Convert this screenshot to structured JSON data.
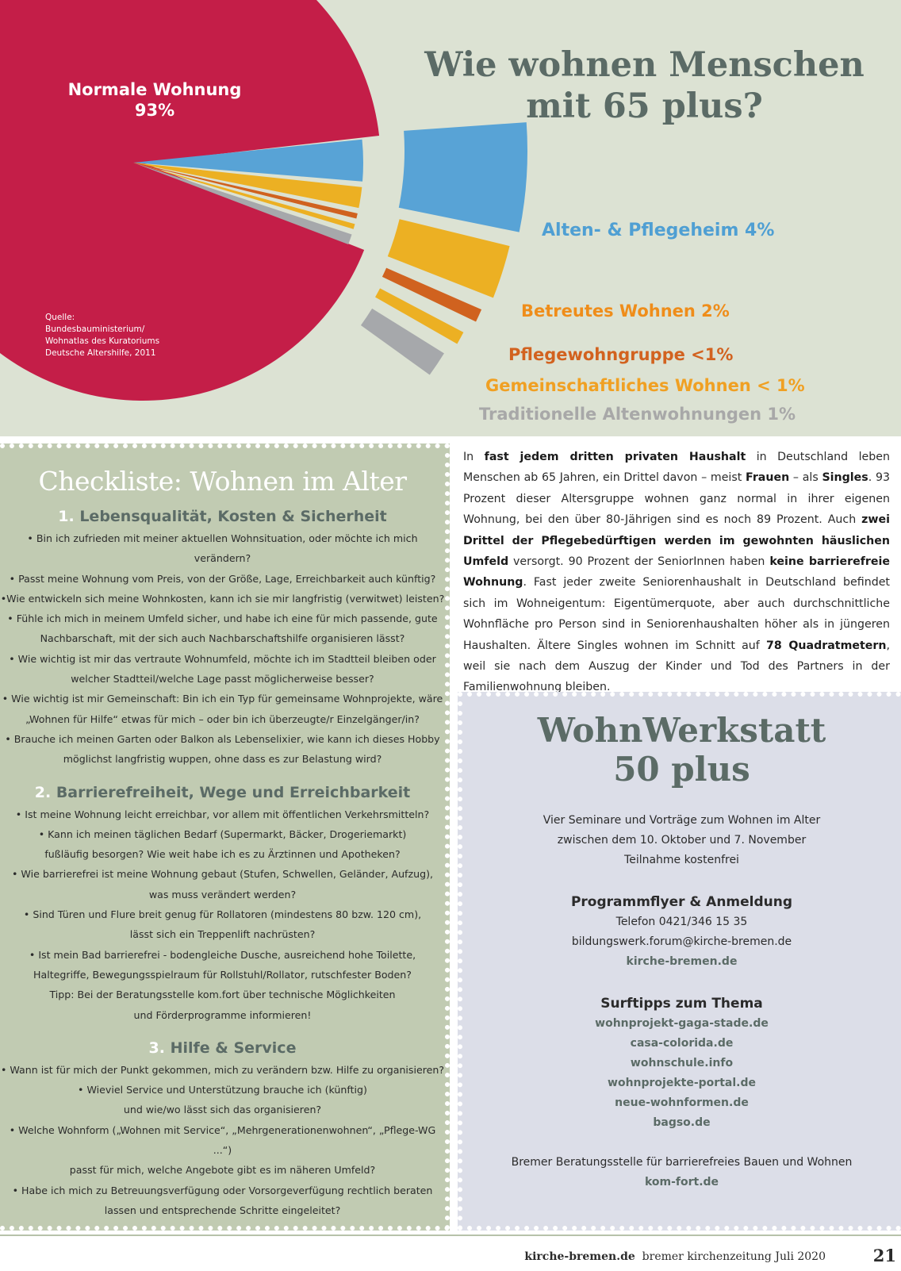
{
  "header": {
    "title_line1": "Wie wohnen Menschen",
    "title_line2": "mit 65 plus?"
  },
  "chart_data": {
    "type": "pie",
    "slices": [
      {
        "label": "Normale Wohnung",
        "value_text": "93%",
        "value": 93,
        "color": "#c41e48"
      },
      {
        "label": "Alten- & Pflegeheim 4%",
        "value": 4,
        "color": "#58a3d6"
      },
      {
        "label": "Betreutes Wohnen 2%",
        "value": 2,
        "color": "#ecb023"
      },
      {
        "label": "Pflegewohngruppe <1%",
        "value": 0.5,
        "color": "#d0621f"
      },
      {
        "label": "Gemeinschaftliches Wohnen < 1%",
        "value": 0.5,
        "color": "#ecb023"
      },
      {
        "label": "Traditionelle Altenwohnungen 1%",
        "value": 1,
        "color": "#a6a8ab"
      }
    ],
    "source": "Quelle:\nBundesbauministerium/\nWohnatlas des Kuratoriums\nDeutsche Altershilfe, 2011"
  },
  "checklist": {
    "title": "Checkliste: Wohnen im Alter",
    "sections": [
      {
        "num": "1.",
        "title": "Lebensqualität, Kosten & Sicherheit",
        "items": [
          "• Bin ich zufrieden mit meiner aktuellen Wohnsituation, oder möchte ich mich verändern?",
          "• Passt meine Wohnung vom Preis, von der Größe, Lage, Erreichbarkeit auch künftig?",
          "•Wie entwickeln sich meine Wohnkosten, kann ich sie mir langfristig (verwitwet) leisten?",
          "• Fühle ich mich in meinem Umfeld sicher, und habe ich eine für mich passende, gute\nNachbarschaft, mit der sich auch Nachbarschaftshilfe organisieren lässt?",
          "• Wie wichtig ist mir das vertraute Wohnumfeld, möchte ich im Stadtteil bleiben oder\nwelcher Stadtteil/welche Lage passt möglicherweise besser?",
          "• Wie wichtig ist mir Gemeinschaft: Bin ich ein Typ für gemeinsame Wohnprojekte, wäre\n„Wohnen für Hilfe“ etwas für mich – oder bin ich überzeugte/r Einzelgänger/in?",
          "• Brauche ich meinen Garten oder Balkon als Lebenselixier, wie kann ich dieses Hobby\nmöglichst langfristig wuppen, ohne dass es zur Belastung wird?"
        ]
      },
      {
        "num": "2.",
        "title": "Barrierefreiheit, Wege und Erreichbarkeit",
        "items": [
          "• Ist meine Wohnung leicht erreichbar, vor allem mit öffentlichen Verkehrsmitteln?",
          "• Kann ich meinen täglichen Bedarf (Supermarkt, Bäcker, Drogeriemarkt)\nfußläufig besorgen? Wie weit habe ich es zu Ärztinnen und Apotheken?",
          "• Wie barrierefrei ist meine Wohnung gebaut (Stufen, Schwellen, Geländer, Aufzug),\nwas muss verändert werden?",
          "• Sind Türen und Flure breit genug für Rollatoren (mindestens 80 bzw. 120 cm),\nlässt sich ein Treppenlift nachrüsten?",
          "• Ist mein Bad barrierefrei - bodengleiche Dusche, ausreichend hohe Toilette,\nHaltegriffe, Bewegungsspielraum für Rollstuhl/Rollator, rutschfester Boden?\nTipp: Bei der Beratungsstelle kom.fort über technische Möglichkeiten\nund Förderprogramme informieren!"
        ]
      },
      {
        "num": "3.",
        "title": "Hilfe & Service",
        "items": [
          "• Wann ist für mich der Punkt gekommen, mich zu verändern bzw. Hilfe zu organisieren?",
          "• Wieviel Service und Unterstützung brauche ich (künftig)\nund wie/wo lässt sich das organisieren?",
          "• Welche Wohnform („Wohnen mit Service“, „Mehrgenerationenwohnen“, „Pflege-WG ...“)\npasst für mich, welche Angebote gibt es im näheren Umfeld?",
          "• Habe ich mich zu Betreuungsverfügung oder Vorsorgeverfügung rechtlich beraten\nlassen und entsprechende Schritte eingeleitet?"
        ]
      }
    ]
  },
  "article": {
    "runs": [
      {
        "t": "In "
      },
      {
        "t": "fast jedem dritten privaten Haushalt",
        "b": true
      },
      {
        "t": " in Deutschland leben Menschen ab 65 Jahren, ein Drittel davon – meist "
      },
      {
        "t": "Frauen",
        "b": true
      },
      {
        "t": " – als "
      },
      {
        "t": "Singles",
        "b": true
      },
      {
        "t": ". 93 Prozent dieser Altersgruppe wohnen ganz normal in ihrer eigenen Wohnung, bei den über 80-Jährigen sind es noch 89 Prozent. Auch "
      },
      {
        "t": "zwei Drittel der Pflegebedürftigen werden im gewohnten häuslichen Umfeld",
        "b": true
      },
      {
        "t": " versorgt. 90 Prozent der SeniorInnen haben "
      },
      {
        "t": "keine barrierefreie Wohnung",
        "b": true
      },
      {
        "t": ". Fast jeder zweite Seniorenhaushalt in Deutschland befindet sich im Wohneigentum: Eigentümerquote, aber auch durchschnittliche Wohnfläche pro Person sind in Seniorenhaushalten höher als in jüngeren Haushalten. Ältere Singles wohnen im Schnitt auf "
      },
      {
        "t": "78 Quadratmetern",
        "b": true
      },
      {
        "t": ", weil sie nach dem Auszug der Kinder und Tod des Partners in der Familienwohnung bleiben."
      }
    ]
  },
  "werkstatt": {
    "title_line1": "WohnWerkstatt",
    "title_line2": "50 plus",
    "intro": [
      "Vier Seminare und Vorträge zum Wohnen im Alter",
      "zwischen dem 10. Oktober und 7. November",
      "Teilnahme kostenfrei"
    ],
    "program_heading": "Programmflyer & Anmeldung",
    "phone": "Telefon 0421/346 15 35",
    "email": "bildungswerk.forum@kirche-bremen.de",
    "site": "kirche-bremen.de",
    "tips_heading": "Surftipps zum Thema",
    "tips": [
      "wohnprojekt-gaga-stade.de",
      "casa-colorida.de",
      "wohnschule.info",
      "wohnprojekte-portal.de",
      "neue-wohnformen.de",
      "bagso.de"
    ],
    "advice_text": "Bremer Beratungsstelle für barrierefreies Bauen und Wohnen",
    "advice_link": "kom-fort.de"
  },
  "footer": {
    "site": "kirche-bremen.de",
    "publication": "bremer kirchenzeitung Juli 2020",
    "page": "21"
  }
}
